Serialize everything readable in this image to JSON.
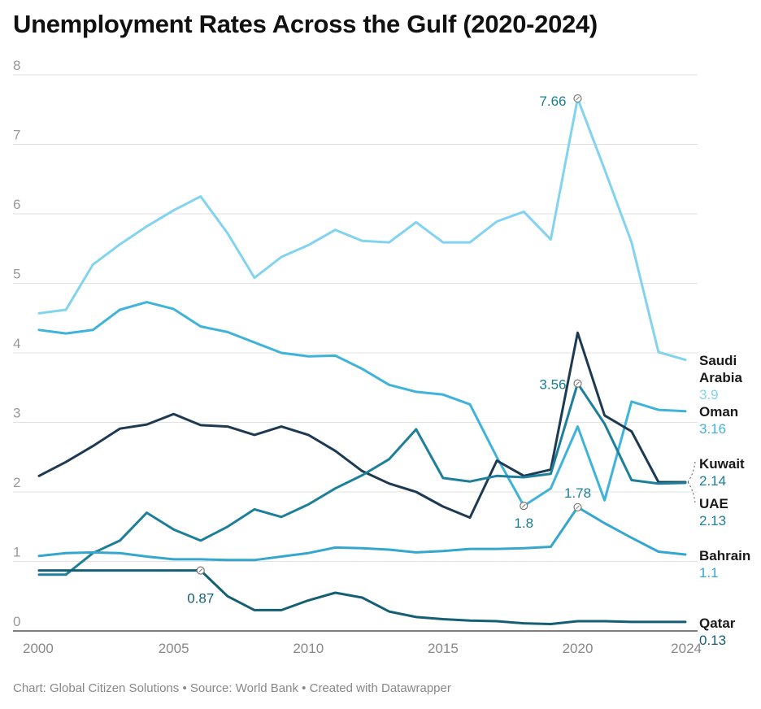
{
  "title": "Unemployment Rates Across the Gulf (2020-2024)",
  "footer": {
    "chart_credit": "Chart: Global Citizen Solutions",
    "source": "Source: World Bank",
    "tool": "Created with Datawrapper",
    "separator": "•"
  },
  "chart_data": {
    "type": "line",
    "x": [
      2000,
      2001,
      2002,
      2003,
      2004,
      2005,
      2006,
      2007,
      2008,
      2009,
      2010,
      2011,
      2012,
      2013,
      2014,
      2015,
      2016,
      2017,
      2018,
      2019,
      2020,
      2021,
      2022,
      2023,
      2024
    ],
    "x_ticks": [
      "2000",
      "2005",
      "2010",
      "2015",
      "2020",
      "2024"
    ],
    "y_ticks": [
      "0",
      "1",
      "2",
      "3",
      "4",
      "5",
      "6",
      "7",
      "8"
    ],
    "ylim": [
      0,
      8
    ],
    "xlim": [
      2000,
      2024
    ],
    "grid": "horizontal",
    "legend": "direct-labels-right",
    "series": [
      {
        "name": "Saudi Arabia",
        "name_lines": [
          "Saudi",
          "Arabia"
        ],
        "end_label": "3.9",
        "color": "#82d3f0",
        "values": [
          4.57,
          4.62,
          5.27,
          5.56,
          5.82,
          6.05,
          6.25,
          5.72,
          5.08,
          5.38,
          5.55,
          5.77,
          5.61,
          5.59,
          5.88,
          5.59,
          5.59,
          5.89,
          6.03,
          5.63,
          7.66,
          6.64,
          5.59,
          4.01,
          3.9
        ]
      },
      {
        "name": "Oman",
        "name_lines": [
          "Oman"
        ],
        "end_label": "3.16",
        "color": "#3fb3d9",
        "values": [
          4.33,
          4.28,
          4.33,
          4.62,
          4.73,
          4.63,
          4.38,
          4.3,
          4.15,
          4.0,
          3.95,
          3.96,
          3.77,
          3.54,
          3.44,
          3.4,
          3.26,
          2.5,
          1.8,
          2.05,
          2.94,
          1.88,
          3.3,
          3.18,
          3.16
        ]
      },
      {
        "name": "Kuwait",
        "name_lines": [
          "Kuwait"
        ],
        "end_label": "2.14",
        "color": "#1e3a52",
        "values": [
          2.23,
          2.43,
          2.66,
          2.91,
          2.97,
          3.12,
          2.96,
          2.94,
          2.82,
          2.94,
          2.82,
          2.59,
          2.3,
          2.12,
          2.0,
          1.79,
          1.63,
          2.45,
          2.23,
          2.32,
          4.29,
          3.1,
          2.87,
          2.14,
          2.14
        ]
      },
      {
        "name": "UAE",
        "name_lines": [
          "UAE"
        ],
        "end_label": "2.13",
        "color": "#1d7f9a",
        "values": [
          0.81,
          0.81,
          1.12,
          1.3,
          1.7,
          1.46,
          1.3,
          1.5,
          1.75,
          1.64,
          1.82,
          2.05,
          2.24,
          2.47,
          2.9,
          2.2,
          2.15,
          2.23,
          2.21,
          2.26,
          3.56,
          2.98,
          2.17,
          2.12,
          2.13
        ]
      },
      {
        "name": "Bahrain",
        "name_lines": [
          "Bahrain"
        ],
        "end_label": "1.1",
        "color": "#35a7cf",
        "values": [
          1.08,
          1.12,
          1.13,
          1.12,
          1.07,
          1.03,
          1.03,
          1.02,
          1.02,
          1.07,
          1.12,
          1.2,
          1.19,
          1.17,
          1.13,
          1.15,
          1.18,
          1.18,
          1.19,
          1.21,
          1.78,
          1.55,
          1.34,
          1.14,
          1.1
        ]
      },
      {
        "name": "Qatar",
        "name_lines": [
          "Qatar"
        ],
        "end_label": "0.13",
        "color": "#145f73",
        "values": [
          0.87,
          0.87,
          0.87,
          0.87,
          0.87,
          0.87,
          0.87,
          0.5,
          0.3,
          0.3,
          0.44,
          0.55,
          0.48,
          0.28,
          0.2,
          0.17,
          0.15,
          0.14,
          0.11,
          0.1,
          0.14,
          0.14,
          0.13,
          0.13,
          0.13
        ]
      }
    ],
    "annotations": [
      {
        "series": "Saudi Arabia",
        "x": 2020,
        "y": 7.66,
        "text": "7.66",
        "color": "#1a7d97"
      },
      {
        "series": "UAE",
        "x": 2020,
        "y": 3.56,
        "text": "3.56",
        "color": "#1a7d97"
      },
      {
        "series": "Oman",
        "x": 2018,
        "y": 1.8,
        "text": "1.8",
        "color": "#1a7d97"
      },
      {
        "series": "Bahrain",
        "x": 2020,
        "y": 1.78,
        "text": "1.78",
        "color": "#1a7d97"
      },
      {
        "series": "Qatar",
        "x": 2006,
        "y": 0.87,
        "text": "0.87",
        "color": "#145f73"
      }
    ]
  }
}
